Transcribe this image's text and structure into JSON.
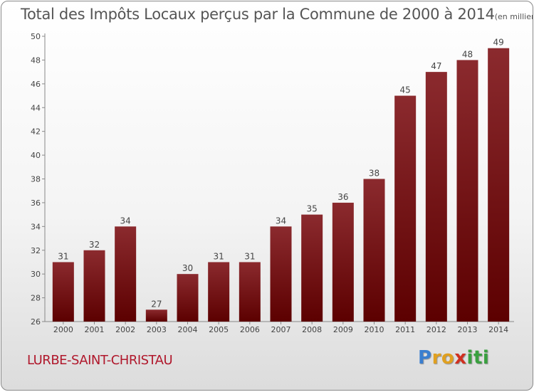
{
  "chart_data": {
    "type": "bar",
    "title": "Total des Impôts Locaux perçus par la Commune de 2000 à 2014",
    "unit_note": "(en milliers d'€)",
    "categories": [
      "2000",
      "2001",
      "2002",
      "2003",
      "2004",
      "2005",
      "2006",
      "2007",
      "2008",
      "2009",
      "2010",
      "2011",
      "2012",
      "2013",
      "2014"
    ],
    "values": [
      31,
      32,
      34,
      27,
      30,
      31,
      31,
      34,
      35,
      36,
      38,
      45,
      47,
      48,
      49
    ],
    "ylim": [
      26,
      50
    ],
    "yticks": [
      26,
      28,
      30,
      32,
      34,
      36,
      38,
      40,
      42,
      44,
      46,
      48,
      50
    ],
    "xlabel": "",
    "ylabel": "",
    "grid": false,
    "bar_color_top": "#8b2a2e",
    "bar_color_bottom": "#5c0000"
  },
  "footer": {
    "commune": "LURBE-SAINT-CHRISTAU",
    "logo_letters": [
      {
        "ch": "P",
        "color": "#3a7fd0"
      },
      {
        "ch": "r",
        "color": "#e0a020"
      },
      {
        "ch": "o",
        "color": "#e0a020"
      },
      {
        "ch": "x",
        "color": "#d03020"
      },
      {
        "ch": "i",
        "color": "#3aa040"
      },
      {
        "ch": "t",
        "color": "#3aa040"
      },
      {
        "ch": "i",
        "color": "#3aa040"
      }
    ]
  }
}
